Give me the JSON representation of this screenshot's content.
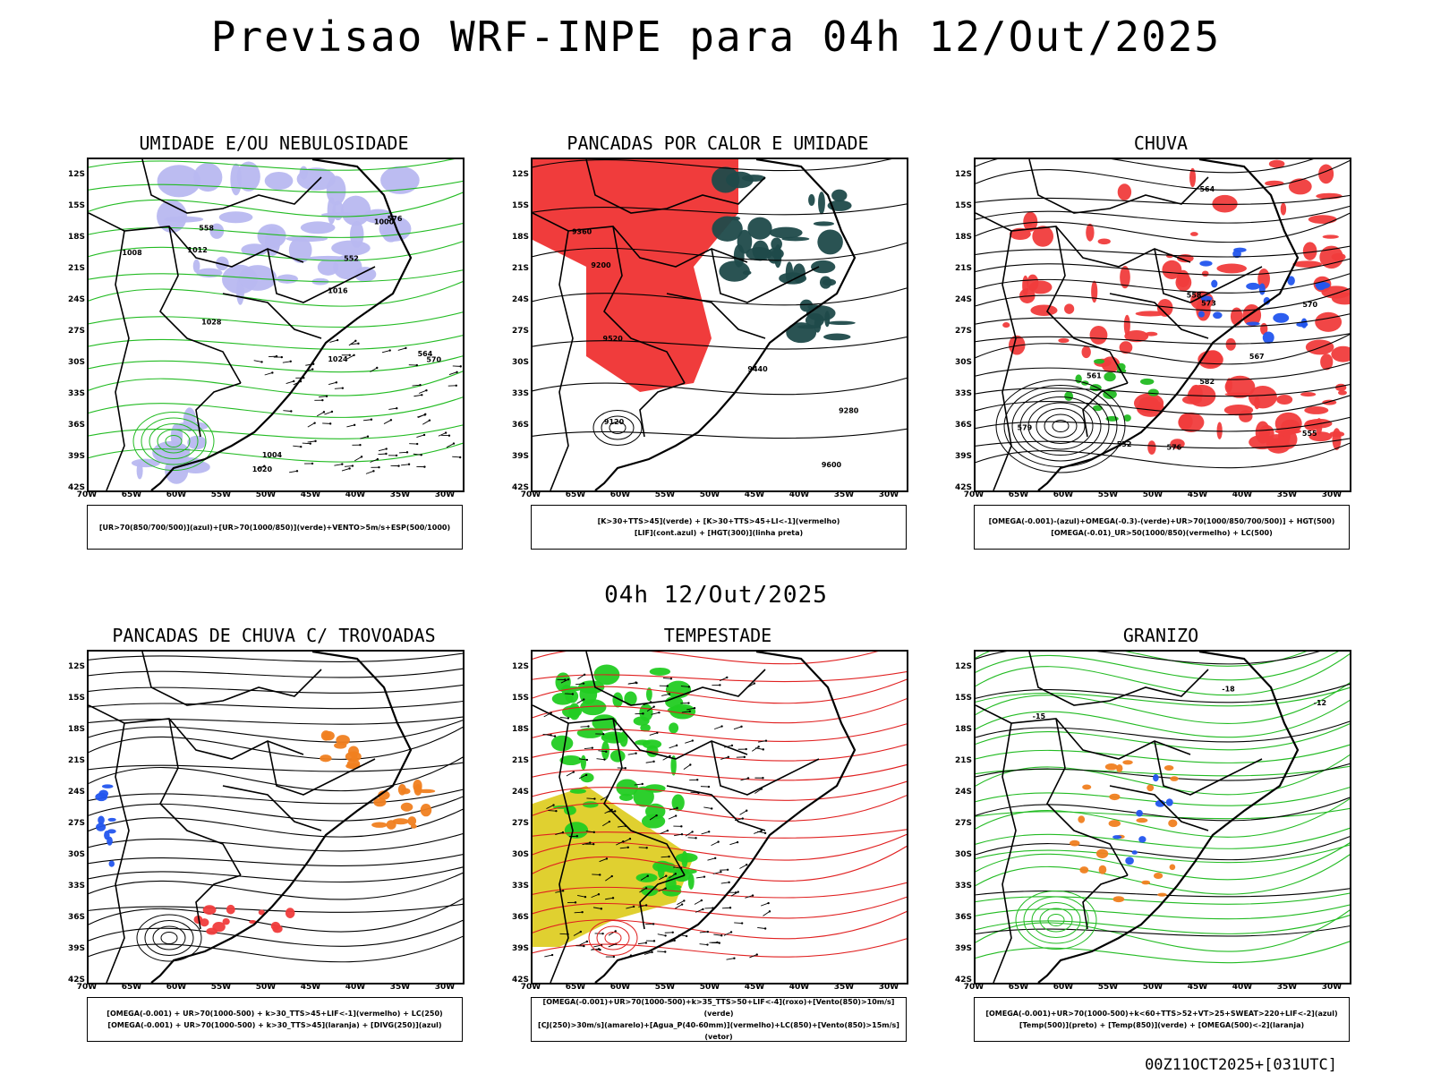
{
  "header": {
    "title": "Previsao WRF-INPE  para 04h 12/Out/2025",
    "mid_date": "04h 12/Out/2025",
    "run_stamp": "00Z11OCT2025+[031UTC]"
  },
  "axes": {
    "lat_labels": [
      "12S",
      "15S",
      "18S",
      "21S",
      "24S",
      "27S",
      "30S",
      "33S",
      "36S",
      "39S",
      "42S"
    ],
    "lon_labels": [
      "70W",
      "65W",
      "60W",
      "55W",
      "50W",
      "45W",
      "40W",
      "35W",
      "30W"
    ]
  },
  "panels": [
    {
      "id": "umidade",
      "title": "UMIDADE E/OU NEBULOSIDADE",
      "legend": [
        "[UR>70(850/700/500)](azul)+[UR>70(1000/850)](verde)+VENTO>5m/s+ESP(500/1000)"
      ],
      "contour_labels": [
        "1008",
        "1012",
        "1016",
        "1004",
        "1000",
        "1020",
        "1024",
        "1028",
        "576",
        "570",
        "564",
        "558",
        "552"
      ],
      "colors": {
        "fill": "#b8b8f0",
        "line1": "#22bb22",
        "line2": "#e02020",
        "line3": "#000000"
      }
    },
    {
      "id": "pancadas",
      "title": "PANCADAS POR CALOR E UMIDADE",
      "legend": [
        "[K>30+TTS>45](verde) + [K>30+TTS>45+LI<-1](vermelho)",
        "[LIF](cont.azul) + [HGT(300)](linha preta)"
      ],
      "contour_labels": [
        "9600",
        "9520",
        "9440",
        "9360",
        "9280",
        "9200",
        "9120"
      ],
      "colors": {
        "fill": "#f03c3c",
        "fill2": "#1f4a4a",
        "line1": "#2244ee",
        "line2": "#000000"
      }
    },
    {
      "id": "chuva",
      "title": "CHUVA",
      "legend": [
        "[OMEGA(-0.001)-(azul)+OMEGA(-0.3)-(verde)+UR>70(1000/850/700/500)] + HGT(500)",
        "[OMEGA(-0.01)_UR>50(1000/850)(vermelho) + LC(500)"
      ],
      "contour_labels": [
        "582",
        "579",
        "576",
        "573",
        "570",
        "567",
        "564",
        "561",
        "558",
        "555",
        "552"
      ],
      "colors": {
        "fill": "#f03c3c",
        "fill2": "#2255ee",
        "fill3": "#22bb22",
        "line1": "#000000"
      }
    },
    {
      "id": "trovoadas",
      "title": "PANCADAS DE CHUVA C/ TROVOADAS",
      "legend": [
        "[OMEGA(-0.001) + UR>70(1000-500) + k>30_TTS>45+LIF<-1](vermelho) + LC(250)",
        "[OMEGA(-0.001) + UR>70(1000-500) + k>30_TTS>45](laranja) + [DIVG(250)](azul)"
      ],
      "contour_labels": [],
      "colors": {
        "fill": "#f03c3c",
        "fill2": "#f08020",
        "fill3": "#2255ee",
        "line1": "#000000"
      }
    },
    {
      "id": "tempestade",
      "title": "TEMPESTADE",
      "legend": [
        "[OMEGA(-0.001)+UR>70(1000-500)+k>35_TTS>50+LIF<-4](roxo)+[Vento(850)>10m/s](verde)",
        "[CJ(250)>30m/s](amarelo)+[Agua_P(40-60mm)](vermelho)+LC(850)+[Vento(850)>15m/s](vetor)"
      ],
      "contour_labels": [],
      "colors": {
        "fill": "#e0d030",
        "fill2": "#22cc22",
        "line1": "#e02020",
        "line2": "#000000"
      }
    },
    {
      "id": "granizo",
      "title": "GRANIZO",
      "legend": [
        "[OMEGA(-0.001)+UR>70(1000-500)+k<60+TTS>52+VT>25+SWEAT>220+LIF<-2](azul)",
        "[Temp(500)](preto) + [Temp(850)](verde) + [OMEGA(500)<-2](laranja)"
      ],
      "contour_labels": [
        "-12",
        "-15",
        "-18"
      ],
      "colors": {
        "line1": "#22bb22",
        "line2": "#000000",
        "fill": "#f08020",
        "fill2": "#2255ee"
      }
    }
  ]
}
